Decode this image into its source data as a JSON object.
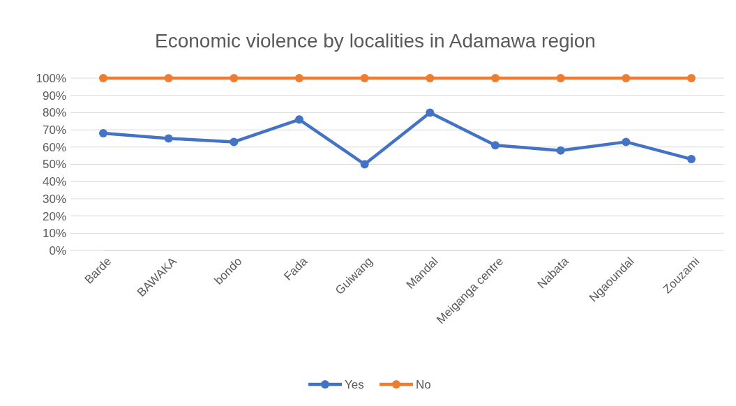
{
  "chart_data": {
    "type": "line",
    "title": "Economic violence by localities in Adamawa region",
    "categories": [
      "Barde",
      "BAWAKA",
      "bondo",
      "Fada",
      "Guiwang",
      "Mandal",
      "Meiganga centre",
      "Nabata",
      "Ngaoundal",
      "Zouzami"
    ],
    "series": [
      {
        "name": "Yes",
        "color": "#4472c4",
        "values": [
          68,
          65,
          63,
          76,
          50,
          80,
          61,
          58,
          63,
          53
        ]
      },
      {
        "name": "No",
        "color": "#ed7d31",
        "values": [
          100,
          100,
          100,
          100,
          100,
          100,
          100,
          100,
          100,
          100
        ]
      }
    ],
    "ylim": [
      0,
      100
    ],
    "yticks": [
      {
        "value": 0,
        "label": "0%"
      },
      {
        "value": 10,
        "label": "10%"
      },
      {
        "value": 20,
        "label": "20%"
      },
      {
        "value": 30,
        "label": "30%"
      },
      {
        "value": 40,
        "label": "40%"
      },
      {
        "value": 50,
        "label": "50%"
      },
      {
        "value": 60,
        "label": "60%"
      },
      {
        "value": 70,
        "label": "70%"
      },
      {
        "value": 80,
        "label": "80%"
      },
      {
        "value": 90,
        "label": "90%"
      },
      {
        "value": 100,
        "label": "100%"
      }
    ],
    "grid": "y",
    "legend": "bottom",
    "marker": "circle",
    "line_style": "solid"
  }
}
